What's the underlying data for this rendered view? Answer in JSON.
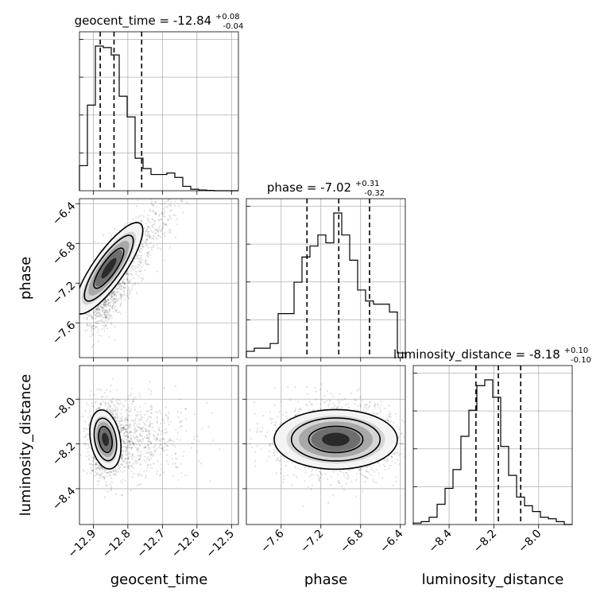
{
  "chart_data": {
    "type": "corner",
    "parameters": [
      {
        "name": "geocent_time",
        "median": "-12.84",
        "plus": "+0.08",
        "minus": "-0.04"
      },
      {
        "name": "phase",
        "median": "-7.02",
        "plus": "+0.31",
        "minus": "-0.32"
      },
      {
        "name": "luminosity_distance",
        "median": "-8.18",
        "plus": "+0.10",
        "minus": "-0.10"
      }
    ],
    "axes": {
      "geocent_time": {
        "range": [
          -12.94,
          -12.48
        ],
        "ticks": [
          -12.9,
          -12.8,
          -12.7,
          -12.6,
          -12.5
        ],
        "tick_labels": [
          "−12.9",
          "−12.8",
          "−12.7",
          "−12.6",
          "−12.5"
        ]
      },
      "phase": {
        "range": [
          -7.95,
          -6.35
        ],
        "ticks": [
          -7.6,
          -7.2,
          -6.8,
          -6.4
        ],
        "tick_labels": [
          "−7.6",
          "−7.2",
          "−6.8",
          "−6.4"
        ]
      },
      "luminosity_distance": {
        "range": [
          -8.56,
          -7.85
        ],
        "ticks": [
          -8.4,
          -8.2,
          -8.0
        ],
        "tick_labels": [
          "−8.4",
          "−8.2",
          "−8.0"
        ]
      }
    },
    "histograms": {
      "geocent_time": {
        "bin_start": -12.94,
        "bin_width": 0.023,
        "counts": [
          0.17,
          0.58,
          0.98,
          0.97,
          0.92,
          0.64,
          0.5,
          0.22,
          0.15,
          0.11,
          0.11,
          0.12,
          0.09,
          0.03,
          0.01,
          0.005,
          0.002,
          0.0,
          0.0,
          0.0
        ],
        "quantiles": [
          -12.88,
          -12.84,
          -12.76
        ]
      },
      "phase": {
        "bin_start": -7.95,
        "bin_width": 0.08,
        "counts": [
          0.04,
          0.06,
          0.06,
          0.09,
          0.28,
          0.28,
          0.48,
          0.64,
          0.71,
          0.78,
          0.73,
          0.92,
          0.78,
          0.62,
          0.43,
          0.36,
          0.34,
          0.34,
          0.29,
          0.03
        ],
        "quantiles": [
          -7.34,
          -7.02,
          -6.71
        ]
      },
      "luminosity_distance": {
        "bin_start": -8.56,
        "bin_width": 0.0355,
        "counts": [
          0.01,
          0.02,
          0.05,
          0.14,
          0.25,
          0.38,
          0.61,
          0.79,
          0.96,
          1.0,
          0.88,
          0.54,
          0.34,
          0.19,
          0.13,
          0.09,
          0.05,
          0.04,
          0.02,
          0.0
        ],
        "quantiles": [
          -8.28,
          -8.18,
          -8.08
        ]
      }
    },
    "grid": true
  }
}
